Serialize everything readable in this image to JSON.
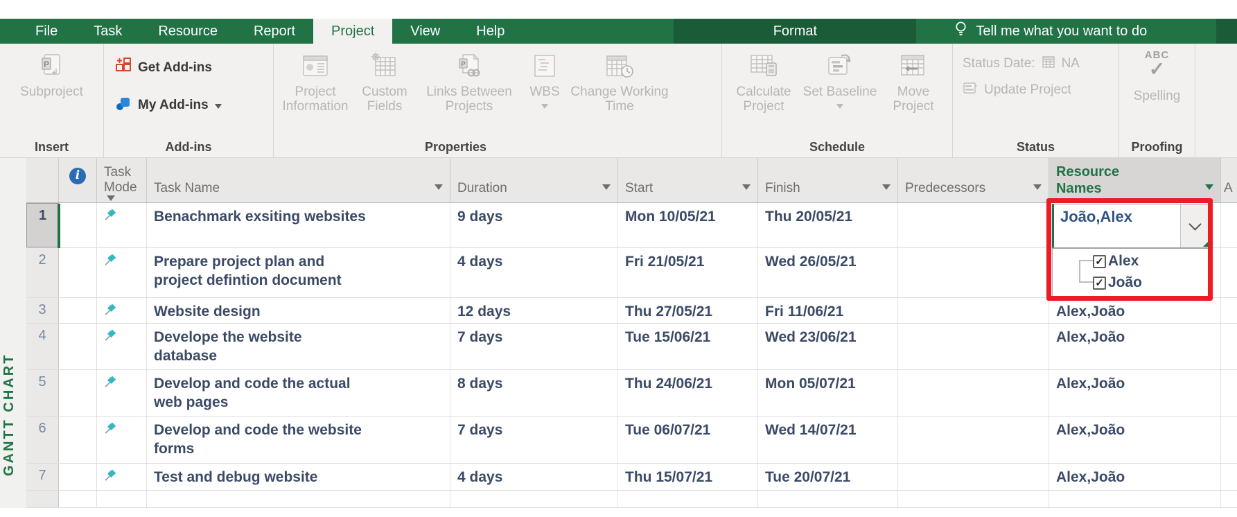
{
  "brand_color": "#217346",
  "annotation": {
    "color": "#ec1c24"
  },
  "ribbon": {
    "tabs": [
      {
        "label": "File"
      },
      {
        "label": "Task"
      },
      {
        "label": "Resource"
      },
      {
        "label": "Report"
      },
      {
        "label": "Project",
        "active": true
      },
      {
        "label": "View"
      },
      {
        "label": "Help"
      },
      {
        "label": "Format",
        "contextual": true
      }
    ],
    "tell_me": "Tell me what you want to do",
    "groups": {
      "insert": {
        "label": "Insert",
        "subproject": "Subproject"
      },
      "addins": {
        "label": "Add-ins",
        "get_addins": "Get Add-ins",
        "my_addins": "My Add-ins"
      },
      "properties": {
        "label": "Properties",
        "buttons": [
          {
            "label": "Project Information"
          },
          {
            "label": "Custom Fields"
          },
          {
            "label": "Links Between Projects"
          },
          {
            "label": "WBS",
            "has_dropdown": true
          },
          {
            "label": "Change Working Time"
          }
        ]
      },
      "schedule": {
        "label": "Schedule",
        "buttons": [
          {
            "label": "Calculate Project"
          },
          {
            "label": "Set Baseline",
            "has_dropdown": true
          },
          {
            "label": "Move Project"
          }
        ]
      },
      "status": {
        "label": "Status",
        "status_date_label": "Status Date:",
        "status_date_value": "NA",
        "update_project": "Update Project"
      },
      "proofing": {
        "label": "Proofing",
        "abc": "ABC",
        "spelling": "Spelling"
      }
    }
  },
  "view_label": "GANTT CHART",
  "table": {
    "columns": {
      "task_mode": "Task Mode",
      "task_name": "Task Name",
      "duration": "Duration",
      "start": "Start",
      "finish": "Finish",
      "predecessors": "Predecessors",
      "resource_names": "Resource Names",
      "add_column_hint": "A"
    },
    "rows": [
      {
        "id": "1",
        "name": "Benachmark exsiting websites",
        "duration": "9 days",
        "start": "Mon 10/05/21",
        "finish": "Thu 20/05/21",
        "predecessors": "",
        "resources": "João,Alex"
      },
      {
        "id": "2",
        "name": "Prepare project plan and project defintion document",
        "duration": "4 days",
        "start": "Fri 21/05/21",
        "finish": "Wed 26/05/21",
        "predecessors": "",
        "resources": ""
      },
      {
        "id": "3",
        "name": "Website design",
        "duration": "12 days",
        "start": "Thu 27/05/21",
        "finish": "Fri 11/06/21",
        "predecessors": "",
        "resources": "Alex,João"
      },
      {
        "id": "4",
        "name": "Develope the website database",
        "duration": "7 days",
        "start": "Tue 15/06/21",
        "finish": "Wed 23/06/21",
        "predecessors": "",
        "resources": "Alex,João"
      },
      {
        "id": "5",
        "name": "Develop and code the actual web pages",
        "duration": "8 days",
        "start": "Thu 24/06/21",
        "finish": "Mon 05/07/21",
        "predecessors": "",
        "resources": "Alex,João"
      },
      {
        "id": "6",
        "name": "Develop and code the website forms",
        "duration": "7 days",
        "start": "Tue 06/07/21",
        "finish": "Wed 14/07/21",
        "predecessors": "",
        "resources": "Alex,João"
      },
      {
        "id": "7",
        "name": "Test and debug website",
        "duration": "4 days",
        "start": "Thu 15/07/21",
        "finish": "Tue 20/07/21",
        "predecessors": "",
        "resources": "Alex,João"
      }
    ]
  },
  "resource_dropdown": {
    "options": [
      {
        "label": "Alex",
        "checked": true
      },
      {
        "label": "João",
        "checked": true
      }
    ]
  }
}
